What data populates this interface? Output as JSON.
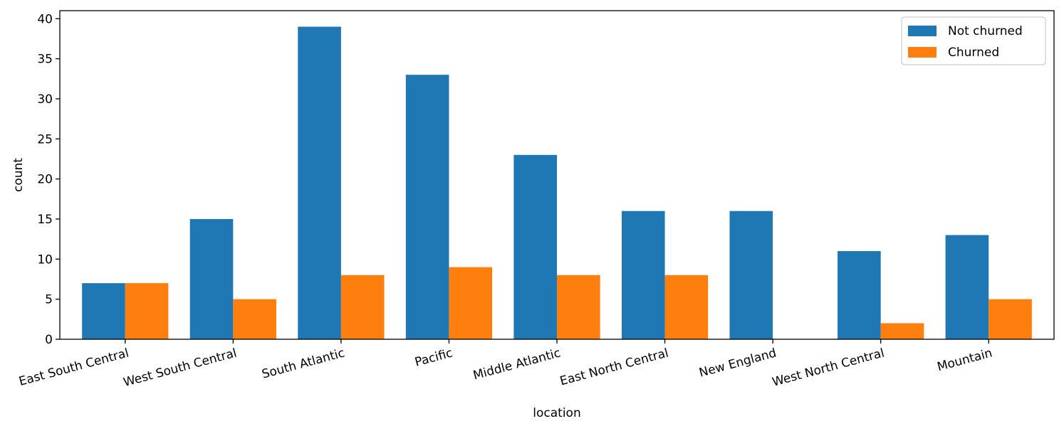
{
  "chart_data": {
    "type": "bar",
    "xlabel": "location",
    "ylabel": "count",
    "ylim": [
      0,
      41
    ],
    "yticks": [
      0,
      5,
      10,
      15,
      20,
      25,
      30,
      35,
      40
    ],
    "categories": [
      "East South Central",
      "West South Central",
      "South Atlantic",
      "Pacific",
      "Middle Atlantic",
      "East North Central",
      "New England",
      "West North Central",
      "Mountain"
    ],
    "series": [
      {
        "name": "Not churned",
        "color": "#1f77b4",
        "values": [
          7,
          15,
          39,
          33,
          23,
          16,
          16,
          11,
          13
        ]
      },
      {
        "name": "Churned",
        "color": "#ff7f0e",
        "values": [
          7,
          5,
          8,
          9,
          8,
          8,
          0,
          2,
          5
        ]
      }
    ],
    "legend_position": "top-right",
    "grid": false,
    "x_tick_rotation": "slanted"
  }
}
